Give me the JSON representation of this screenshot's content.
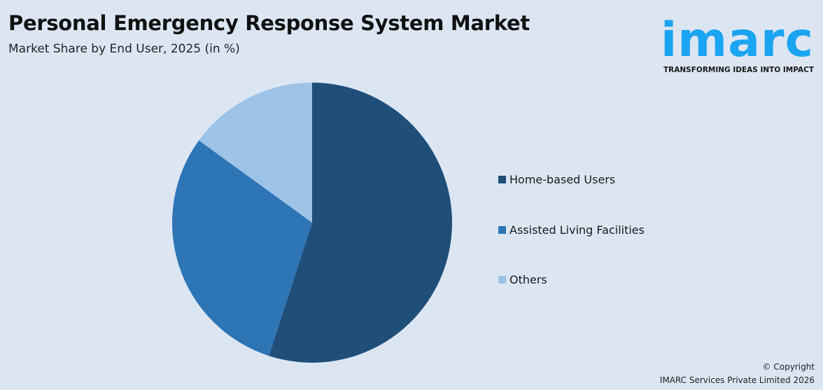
{
  "header": {
    "title": "Personal Emergency Response System Market",
    "subtitle": "Market Share by End User, 2025 (in %)"
  },
  "logo": {
    "word": "imarc",
    "tagline": "TRANSFORMING IDEAS INTO IMPACT",
    "color": "#1ba4f2"
  },
  "chart_data": {
    "type": "pie",
    "title": "Personal Emergency Response System Market",
    "subtitle": "Market Share by End User, 2025 (in %)",
    "categories": [
      "Home-based Users",
      "Assisted Living Facilities",
      "Others"
    ],
    "values": [
      55,
      30,
      15
    ],
    "colors": [
      "#1f4e79",
      "#2e75b6",
      "#9dc3e6"
    ],
    "start_angle": "12 o'clock, clockwise",
    "legend": "right"
  },
  "footer": {
    "copyright": "© Copyright",
    "company": "IMARC Services Private Limited 2026"
  }
}
